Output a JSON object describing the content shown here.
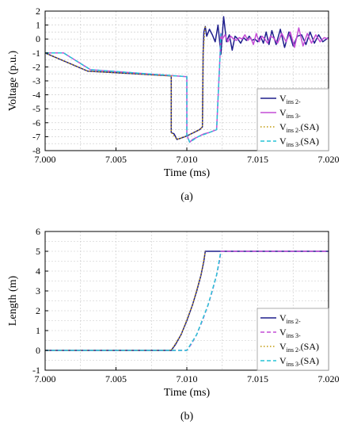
{
  "chart_data": [
    {
      "type": "line",
      "panel_label": "(a)",
      "xlabel": "Time (ms)",
      "ylabel": "Voltage (p.u.)",
      "xlim": [
        7.0,
        7.02
      ],
      "ylim": [
        -8,
        2
      ],
      "xticks": [
        "7.000",
        "7.005",
        "7.010",
        "7.015",
        "7.020"
      ],
      "yticks": [
        "2",
        "1",
        "0",
        "-1",
        "-2",
        "-3",
        "-4",
        "-5",
        "-6",
        "-7",
        "-8"
      ],
      "grid": true,
      "legend_position": "bottom-right",
      "series": [
        {
          "name": "V",
          "sub": "ins 2-",
          "color": "#1e1e8c",
          "dash": "solid",
          "x": [
            7.0,
            7.003,
            7.0089,
            7.0089,
            7.0091,
            7.0093,
            7.0096,
            7.01,
            7.0105,
            7.0109,
            7.0111,
            7.01115,
            7.0112,
            7.0113,
            7.0114,
            7.0116,
            7.0118,
            7.012,
            7.0122,
            7.0124,
            7.0126,
            7.0128,
            7.013,
            7.0132,
            7.0134,
            7.0136,
            7.0138,
            7.014,
            7.0142,
            7.0144,
            7.0146,
            7.0148,
            7.015,
            7.0152,
            7.0154,
            7.0156,
            7.0158,
            7.016,
            7.0163,
            7.0166,
            7.0169,
            7.0172,
            7.0175,
            7.0178,
            7.0181,
            7.0184,
            7.0187,
            7.019,
            7.0193,
            7.0196,
            7.02
          ],
          "values": [
            -1.0,
            -2.3,
            -2.65,
            -6.7,
            -6.8,
            -7.2,
            -7.1,
            -6.95,
            -6.7,
            -6.5,
            -6.3,
            -1.0,
            0.5,
            0.9,
            0.2,
            0.7,
            0.3,
            -0.2,
            1.0,
            -1.1,
            1.6,
            -0.2,
            0.3,
            -0.8,
            0.2,
            0.0,
            -0.3,
            0.1,
            -0.1,
            0.2,
            -0.1,
            0.0,
            -0.2,
            0.2,
            -0.3,
            0.5,
            -0.4,
            0.6,
            -0.4,
            0.7,
            -0.6,
            0.5,
            -0.5,
            0.2,
            0.3,
            -0.4,
            0.5,
            -0.3,
            0.3,
            -0.2,
            0.1
          ]
        },
        {
          "name": "V",
          "sub": "ins 3-",
          "color": "#c44dd6",
          "dash": "solid",
          "x": [
            7.0,
            7.0013,
            7.0032,
            7.01,
            7.01,
            7.0102,
            7.0104,
            7.0108,
            7.0112,
            7.0116,
            7.0121,
            7.01235,
            7.0124,
            7.0125,
            7.0127,
            7.0129,
            7.0131,
            7.0133,
            7.0135,
            7.0137,
            7.0139,
            7.0141,
            7.0143,
            7.0145,
            7.0147,
            7.0149,
            7.0151,
            7.0153,
            7.0155,
            7.0157,
            7.0159,
            7.0161,
            7.0164,
            7.0167,
            7.017,
            7.0173,
            7.0176,
            7.0179,
            7.0182,
            7.0185,
            7.0188,
            7.0191,
            7.0194,
            7.0197,
            7.02
          ],
          "values": [
            -1.0,
            -1.0,
            -2.2,
            -2.7,
            -6.9,
            -7.4,
            -7.2,
            -7.0,
            -6.8,
            -6.7,
            -6.5,
            -1.0,
            0.4,
            0.0,
            0.3,
            -0.2,
            0.2,
            0.0,
            -0.1,
            0.1,
            0.0,
            0.3,
            -0.1,
            0.1,
            -0.4,
            0.4,
            -0.2,
            0.2,
            0.0,
            -0.3,
            0.2,
            0.1,
            -0.3,
            0.4,
            -0.2,
            0.5,
            -0.6,
            0.8,
            -0.5,
            0.4,
            -0.3,
            0.3,
            -0.2,
            0.1,
            0.0
          ]
        },
        {
          "name": "V",
          "sub": "ins 2-",
          "suffix": "(SA)",
          "color": "#c29a0a",
          "dash": "dot",
          "x": [
            7.0,
            7.003,
            7.0089,
            7.0089,
            7.0093,
            7.01,
            7.0109,
            7.0111,
            7.01115,
            7.0113
          ],
          "values": [
            -1.0,
            -2.3,
            -2.65,
            -6.7,
            -7.2,
            -6.95,
            -6.5,
            -6.3,
            -1.0,
            0.9
          ]
        },
        {
          "name": "V",
          "sub": "ins 3-",
          "suffix": "(SA)",
          "color": "#27c4d6",
          "dash": "dash",
          "x": [
            7.0,
            7.0013,
            7.0032,
            7.01,
            7.01,
            7.0102,
            7.0108,
            7.0116,
            7.0121,
            7.01235,
            7.0124
          ],
          "values": [
            -1.0,
            -1.0,
            -2.2,
            -2.7,
            -6.9,
            -7.4,
            -7.0,
            -6.7,
            -6.5,
            -1.0,
            0.4
          ]
        }
      ]
    },
    {
      "type": "line",
      "panel_label": "(b)",
      "xlabel": "Time (ms)",
      "ylabel": "Length (m)",
      "xlim": [
        7.0,
        7.02
      ],
      "ylim": [
        -1,
        6
      ],
      "xticks": [
        "7.000",
        "7.005",
        "7.010",
        "7.015",
        "7.020"
      ],
      "yticks": [
        "6",
        "5",
        "4",
        "3",
        "2",
        "1",
        "0",
        "-1"
      ],
      "grid": true,
      "legend_position": "bottom-right",
      "series": [
        {
          "name": "V",
          "sub": "ins 2-",
          "color": "#1e1e8c",
          "dash": "solid",
          "x": [
            7.0,
            7.0089,
            7.0092,
            7.0096,
            7.01,
            7.0104,
            7.0107,
            7.011,
            7.0112,
            7.0113,
            7.02
          ],
          "values": [
            0,
            0,
            0.3,
            0.8,
            1.5,
            2.3,
            3.0,
            3.8,
            4.5,
            5.0,
            5.0
          ]
        },
        {
          "name": "V",
          "sub": "ins 3-",
          "color": "#c44dd6",
          "dash": "dash",
          "x": [
            7.0,
            7.01,
            7.0103,
            7.0107,
            7.0111,
            7.0115,
            7.0118,
            7.0121,
            7.0123,
            7.0124,
            7.02
          ],
          "values": [
            0,
            0,
            0.3,
            0.8,
            1.5,
            2.3,
            3.0,
            3.8,
            4.5,
            5.0,
            5.0
          ]
        },
        {
          "name": "V",
          "sub": "ins 2-",
          "suffix": "(SA)",
          "color": "#c29a0a",
          "dash": "dot",
          "x": [
            7.0,
            7.0089,
            7.0096,
            7.0104,
            7.011,
            7.0113
          ],
          "values": [
            0,
            0,
            0.8,
            2.3,
            3.8,
            5.0
          ]
        },
        {
          "name": "V",
          "sub": "ins 3-",
          "suffix": "(SA)",
          "color": "#27c4d6",
          "dash": "dash",
          "x": [
            7.0,
            7.01,
            7.0107,
            7.0115,
            7.0121,
            7.0124
          ],
          "values": [
            0,
            0,
            0.8,
            2.3,
            3.8,
            5.0
          ]
        }
      ]
    }
  ]
}
